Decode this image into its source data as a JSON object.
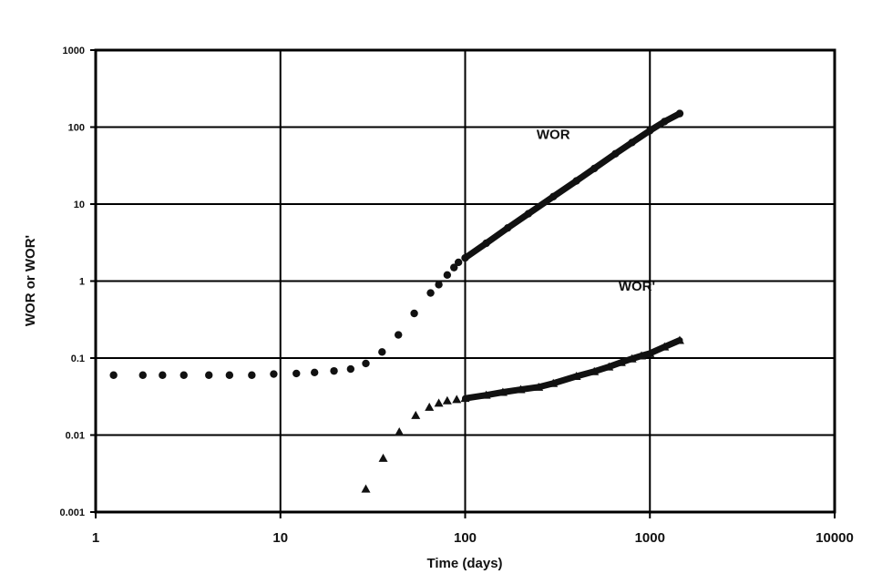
{
  "chart_data": {
    "type": "scatter",
    "title": "",
    "xlabel": "Time (days)",
    "ylabel": "WOR or WOR'",
    "xscale": "log",
    "yscale": "log",
    "xlim": [
      1,
      10000
    ],
    "ylim": [
      0.001,
      1000
    ],
    "grid": true,
    "legend": "none",
    "x_ticks": [
      {
        "value": 1,
        "label": "1"
      },
      {
        "value": 10,
        "label": "10"
      },
      {
        "value": 100,
        "label": "100"
      },
      {
        "value": 1000,
        "label": "1000"
      },
      {
        "value": 10000,
        "label": "10000"
      }
    ],
    "y_ticks": [
      {
        "value": 0.001,
        "label": "0.001"
      },
      {
        "value": 0.01,
        "label": "0.01"
      },
      {
        "value": 0.1,
        "label": "0.1"
      },
      {
        "value": 1,
        "label": "1"
      },
      {
        "value": 10,
        "label": "10"
      },
      {
        "value": 100,
        "label": "100"
      },
      {
        "value": 1000,
        "label": "1000"
      }
    ],
    "series": [
      {
        "name": "WOR",
        "marker": "circle",
        "color": "#111111",
        "points": [
          [
            1.25,
            0.06
          ],
          [
            1.8,
            0.06
          ],
          [
            2.3,
            0.06
          ],
          [
            3.0,
            0.06
          ],
          [
            4.1,
            0.06
          ],
          [
            5.3,
            0.06
          ],
          [
            7.0,
            0.06
          ],
          [
            9.2,
            0.062
          ],
          [
            12.2,
            0.063
          ],
          [
            15.3,
            0.065
          ],
          [
            19.5,
            0.068
          ],
          [
            24.0,
            0.072
          ],
          [
            29.0,
            0.085
          ],
          [
            35.5,
            0.12
          ],
          [
            43.5,
            0.2
          ],
          [
            53.0,
            0.38
          ],
          [
            65.0,
            0.7
          ],
          [
            72.0,
            0.9
          ],
          [
            80.0,
            1.2
          ],
          [
            87.0,
            1.5
          ],
          [
            92.0,
            1.75
          ],
          [
            100,
            2.0
          ],
          [
            130,
            3.1
          ],
          [
            170,
            4.9
          ],
          [
            220,
            7.5
          ],
          [
            300,
            12.5
          ],
          [
            400,
            20
          ],
          [
            500,
            29
          ],
          [
            650,
            45
          ],
          [
            800,
            63
          ],
          [
            1000,
            90
          ],
          [
            1200,
            118
          ],
          [
            1450,
            150
          ]
        ]
      },
      {
        "name": "WOR'",
        "marker": "triangle",
        "color": "#111111",
        "points": [
          [
            29.0,
            0.002
          ],
          [
            36.0,
            0.005
          ],
          [
            44.0,
            0.011
          ],
          [
            54.0,
            0.018
          ],
          [
            64.0,
            0.023
          ],
          [
            72.0,
            0.026
          ],
          [
            80.0,
            0.028
          ],
          [
            90.0,
            0.029
          ],
          [
            100,
            0.03
          ],
          [
            130,
            0.033
          ],
          [
            160,
            0.036
          ],
          [
            200,
            0.039
          ],
          [
            250,
            0.042
          ],
          [
            300,
            0.047
          ],
          [
            400,
            0.058
          ],
          [
            500,
            0.067
          ],
          [
            600,
            0.077
          ],
          [
            700,
            0.088
          ],
          [
            800,
            0.098
          ],
          [
            900,
            0.107
          ],
          [
            1000,
            0.115
          ],
          [
            1200,
            0.14
          ],
          [
            1450,
            0.17
          ]
        ]
      }
    ],
    "annotations": [
      {
        "text": "WOR",
        "x": 300,
        "y": 70
      },
      {
        "text": "WOR'",
        "x": 850,
        "y": 0.75
      }
    ]
  }
}
